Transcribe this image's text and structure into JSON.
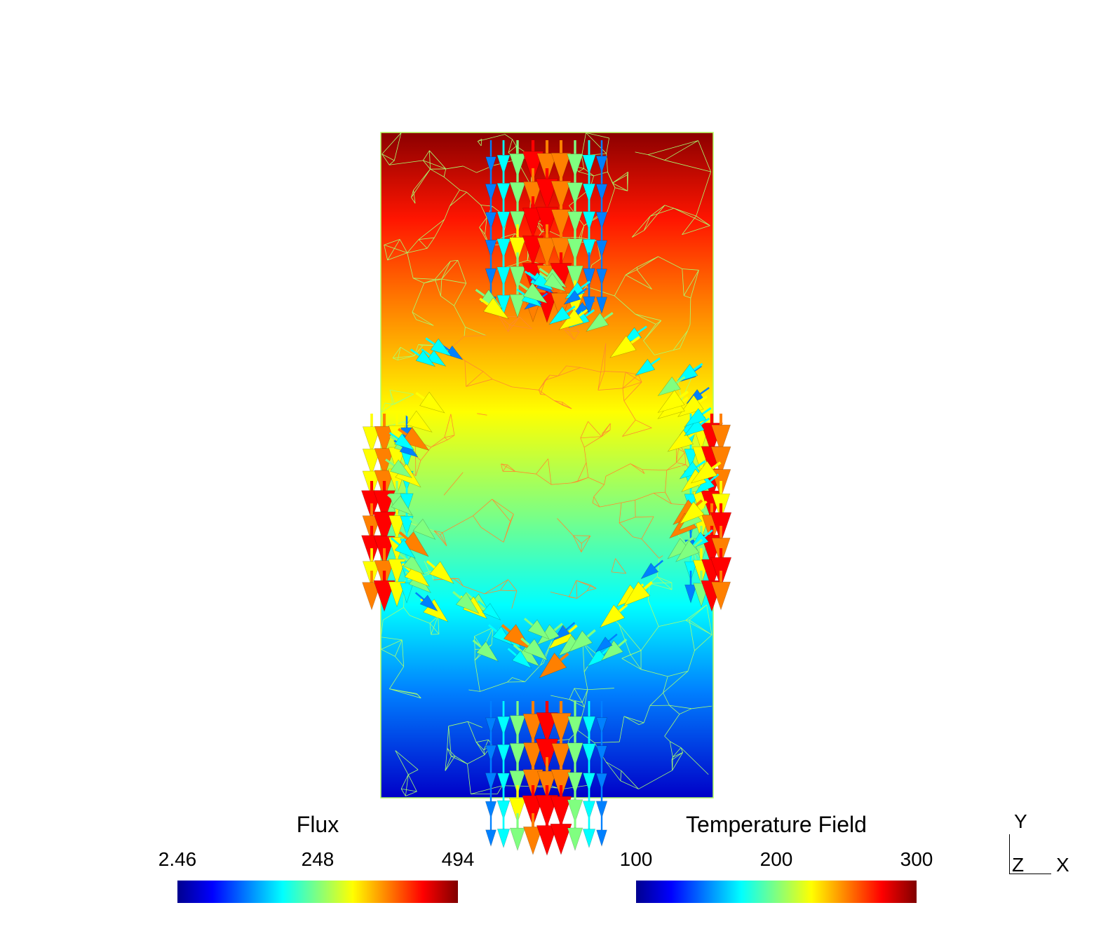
{
  "flux_legend": {
    "title": "Flux",
    "ticks": [
      "2.46",
      "248",
      "494"
    ]
  },
  "temperature_legend": {
    "title": "Temperature Field",
    "ticks": [
      "100",
      "200",
      "300"
    ]
  },
  "triad": {
    "y_label": "Y",
    "z_label": "Z",
    "x_label": "X"
  },
  "colormap": [
    "#00008f",
    "#0000ff",
    "#0080ff",
    "#00ffff",
    "#80ff80",
    "#ffff00",
    "#ff8000",
    "#ff0000",
    "#800000"
  ]
}
